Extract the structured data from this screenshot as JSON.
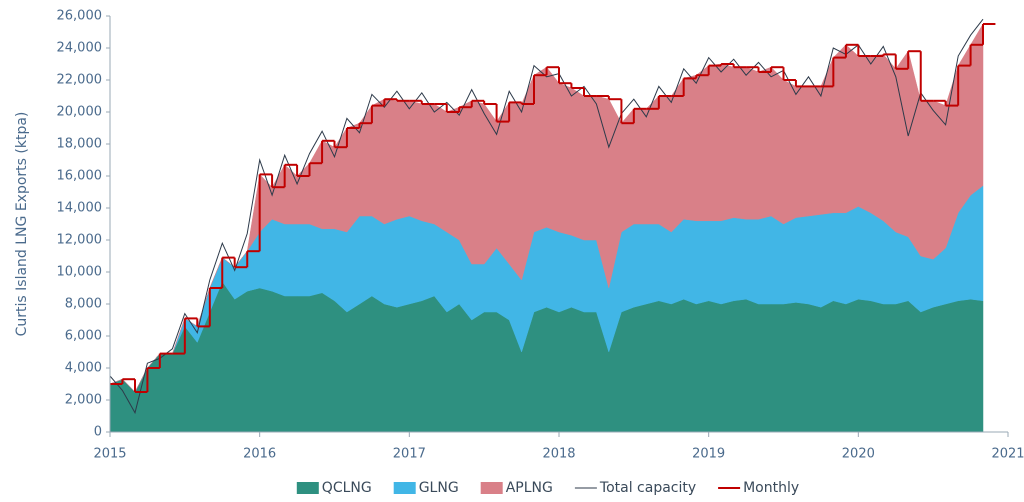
{
  "chart_data": {
    "type": "stacked-area",
    "y_label": "Curtis Island LNG Exports (ktpa)",
    "x": [
      2015,
      2015.083,
      2015.167,
      2015.25,
      2015.333,
      2015.417,
      2015.5,
      2015.583,
      2015.667,
      2015.75,
      2015.833,
      2015.917,
      2016,
      2016.083,
      2016.167,
      2016.25,
      2016.333,
      2016.417,
      2016.5,
      2016.583,
      2016.667,
      2016.75,
      2016.833,
      2016.917,
      2017,
      2017.083,
      2017.167,
      2017.25,
      2017.333,
      2017.417,
      2017.5,
      2017.583,
      2017.667,
      2017.75,
      2017.833,
      2017.917,
      2018,
      2018.083,
      2018.167,
      2018.25,
      2018.333,
      2018.417,
      2018.5,
      2018.583,
      2018.667,
      2018.75,
      2018.833,
      2018.917,
      2019,
      2019.083,
      2019.167,
      2019.25,
      2019.333,
      2019.417,
      2019.5,
      2019.583,
      2019.667,
      2019.75,
      2019.833,
      2019.917,
      2020,
      2020.083,
      2020.167,
      2020.25,
      2020.333,
      2020.417,
      2020.5,
      2020.583,
      2020.667,
      2020.75,
      2020.833
    ],
    "series": [
      {
        "name": "QCLNG",
        "kind": "area",
        "color": "#2e9080",
        "values": [
          3000,
          3300,
          2500,
          4000,
          4900,
          4900,
          6600,
          5600,
          7500,
          9400,
          8300,
          8800,
          9000,
          8800,
          8500,
          8500,
          8500,
          8700,
          8200,
          7500,
          8000,
          8500,
          8000,
          7800,
          8000,
          8200,
          8500,
          7500,
          8000,
          7000,
          7500,
          7500,
          7000,
          5000,
          7500,
          7800,
          7500,
          7800,
          7500,
          7500,
          5000,
          7500,
          7800,
          8000,
          8200,
          8000,
          8300,
          8000,
          8200,
          8000,
          8200,
          8300,
          8000,
          8000,
          8000,
          8100,
          8000,
          7800,
          8200,
          8000,
          8300,
          8200,
          8000,
          8000,
          8200,
          7500,
          7800,
          8000,
          8200,
          8300,
          8200
        ]
      },
      {
        "name": "GLNG",
        "kind": "area",
        "color": "#41b6e6",
        "values": [
          0,
          0,
          0,
          0,
          0,
          0,
          500,
          1000,
          1500,
          1500,
          2000,
          2500,
          3500,
          4500,
          4500,
          4500,
          4500,
          4000,
          4500,
          5000,
          5500,
          5000,
          5000,
          5500,
          5500,
          5000,
          4500,
          5000,
          4000,
          3500,
          3000,
          4000,
          3500,
          4500,
          5000,
          5000,
          5000,
          4500,
          4500,
          4500,
          4000,
          5000,
          5200,
          5000,
          4800,
          4500,
          5000,
          5200,
          5000,
          5200,
          5200,
          5000,
          5300,
          5500,
          5000,
          5300,
          5500,
          5800,
          5500,
          5700,
          5800,
          5500,
          5200,
          4500,
          4000,
          3500,
          3000,
          3500,
          5500,
          6500,
          7200
        ]
      },
      {
        "name": "APLNG",
        "kind": "area",
        "color": "#d98088",
        "values": [
          0,
          0,
          0,
          0,
          0,
          0,
          0,
          0,
          0,
          0,
          0,
          0,
          3600,
          2000,
          3700,
          3000,
          3800,
          5500,
          5100,
          6500,
          5800,
          6900,
          7800,
          7400,
          7200,
          7300,
          7500,
          7500,
          8300,
          10200,
          10000,
          7900,
          10100,
          11000,
          9800,
          10000,
          9300,
          9200,
          9000,
          9000,
          11800,
          6800,
          7200,
          7200,
          8000,
          8500,
          8800,
          9100,
          9700,
          9800,
          9400,
          9500,
          9200,
          9300,
          9000,
          8200,
          8100,
          8000,
          9700,
          10500,
          9400,
          9800,
          10400,
          10200,
          11600,
          9700,
          9900,
          8900,
          9200,
          9400,
          10100
        ]
      },
      {
        "name": "Total capacity",
        "kind": "line",
        "color": "#2d3a4a",
        "values": [
          3500,
          2600,
          1200,
          4300,
          4600,
          5200,
          7400,
          6200,
          9500,
          11800,
          10100,
          12400,
          17000,
          14800,
          17300,
          15500,
          17400,
          18800,
          17200,
          19600,
          18700,
          21100,
          20300,
          21300,
          20200,
          21200,
          20000,
          20600,
          19800,
          21400,
          19900,
          18600,
          21300,
          20000,
          22900,
          22200,
          22400,
          21000,
          21600,
          20500,
          17800,
          19900,
          20800,
          19700,
          21600,
          20600,
          22700,
          21800,
          23400,
          22500,
          23300,
          22300,
          23100,
          22200,
          22600,
          21100,
          22200,
          21000,
          24000,
          23600,
          24200,
          23000,
          24100,
          22200,
          18500,
          21200,
          20100,
          19200,
          23500,
          24800,
          25800
        ]
      },
      {
        "name": "Monthly",
        "kind": "step",
        "color": "#c00000",
        "values": [
          3000,
          3300,
          2500,
          4000,
          4900,
          4900,
          7100,
          6600,
          9000,
          10900,
          10300,
          11300,
          16100,
          15300,
          16700,
          16000,
          16800,
          18200,
          17800,
          19000,
          19300,
          20400,
          20800,
          20700,
          20700,
          20500,
          20500,
          20000,
          20300,
          20700,
          20500,
          19400,
          20600,
          20500,
          22300,
          22800,
          21800,
          21500,
          21000,
          21000,
          20800,
          19300,
          20200,
          20200,
          21000,
          21000,
          22100,
          22300,
          22900,
          23000,
          22800,
          22800,
          22500,
          22800,
          22000,
          21600,
          21600,
          21600,
          23400,
          24200,
          23500,
          23500,
          23600,
          22700,
          23800,
          20700,
          20700,
          20400,
          22900,
          24200,
          25500
        ]
      }
    ],
    "xlim": [
      2015,
      2021
    ],
    "xticks": [
      2015,
      2016,
      2017,
      2018,
      2019,
      2020,
      2021
    ],
    "ylim": [
      0,
      26000
    ],
    "yticks": [
      0,
      {
        "value": 2000,
        "label": "2,000"
      },
      {
        "value": 4000,
        "label": "4,000"
      },
      {
        "value": 6000,
        "label": "6,000"
      },
      {
        "value": 8000,
        "label": "8,000"
      },
      {
        "value": 10000,
        "label": "10,000"
      },
      {
        "value": 12000,
        "label": "12,000"
      },
      {
        "value": 14000,
        "label": "14,000"
      },
      {
        "value": 16000,
        "label": "16,000"
      },
      {
        "value": 18000,
        "label": "18,000"
      },
      {
        "value": 20000,
        "label": "20,000"
      },
      {
        "value": 22000,
        "label": "22,000"
      },
      {
        "value": 24000,
        "label": "24,000"
      },
      {
        "value": 26000,
        "label": "26,000"
      }
    ],
    "grid": false,
    "legend": "bottom"
  }
}
